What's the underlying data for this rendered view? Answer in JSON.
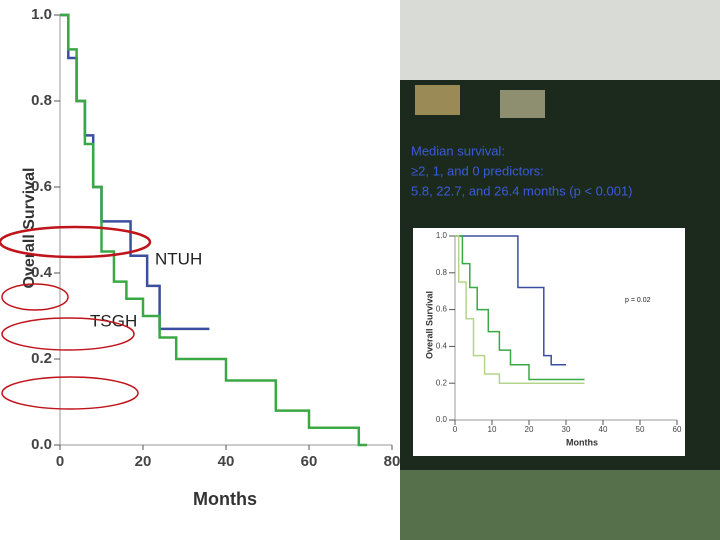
{
  "chart_data": [
    {
      "type": "line",
      "x_label": "Months",
      "y_label": "Overall Survival",
      "xlim": [
        0,
        80
      ],
      "ylim": [
        0,
        1
      ],
      "xticks": [
        0,
        20,
        40,
        60,
        80
      ],
      "yticks": [
        {
          "value": 0,
          "label": "0.0"
        },
        0.2,
        0.4,
        0.6,
        0.8,
        {
          "value": 1,
          "label": "1.0"
        }
      ],
      "annotations": [
        "NTUH",
        "TSGH"
      ],
      "series": [
        {
          "name": "NTUH",
          "color": "#3b4fa0",
          "x": [
            0,
            2,
            2,
            4,
            4,
            6,
            6,
            8,
            8,
            10,
            10,
            17,
            17,
            21,
            21,
            24,
            24,
            36
          ],
          "values": [
            1,
            1,
            0.9,
            0.9,
            0.8,
            0.8,
            0.72,
            0.72,
            0.6,
            0.6,
            0.52,
            0.52,
            0.44,
            0.44,
            0.37,
            0.37,
            0.27,
            0.27
          ]
        },
        {
          "name": "TSGH",
          "color": "#3aa845",
          "x": [
            0,
            2,
            2,
            4,
            4,
            6,
            6,
            8,
            8,
            10,
            10,
            13,
            13,
            16,
            16,
            20,
            20,
            24,
            24,
            28,
            28,
            40,
            40,
            52,
            52,
            60,
            60,
            72,
            72,
            74
          ],
          "values": [
            1,
            1,
            0.92,
            0.92,
            0.8,
            0.8,
            0.7,
            0.7,
            0.6,
            0.6,
            0.45,
            0.45,
            0.38,
            0.38,
            0.34,
            0.34,
            0.3,
            0.3,
            0.25,
            0.25,
            0.2,
            0.2,
            0.15,
            0.15,
            0.08,
            0.08,
            0.04,
            0.04,
            0,
            0
          ]
        }
      ]
    },
    {
      "type": "line",
      "x_label": "Months",
      "y_label": "Overall Survival",
      "xlim": [
        0,
        60
      ],
      "ylim": [
        0,
        1
      ],
      "xticks": [
        0,
        10,
        20,
        30,
        40,
        50,
        60
      ],
      "yticks": [
        {
          "value": 0,
          "label": "0.0"
        },
        0.2,
        0.4,
        0.6,
        0.8,
        {
          "value": 1,
          "label": "1.0"
        }
      ],
      "annotations": [
        "p = 0.02"
      ],
      "series": [
        {
          "color": "#3b4fa0",
          "x": [
            0,
            17,
            17,
            24,
            24,
            26,
            26,
            30
          ],
          "values": [
            1,
            1,
            0.72,
            0.72,
            0.35,
            0.35,
            0.3,
            0.3
          ]
        },
        {
          "color": "#3aa845",
          "x": [
            0,
            2,
            2,
            4,
            4,
            6,
            6,
            9,
            9,
            12,
            12,
            15,
            15,
            20,
            20,
            35
          ],
          "values": [
            1,
            1,
            0.85,
            0.85,
            0.72,
            0.72,
            0.6,
            0.6,
            0.48,
            0.48,
            0.38,
            0.38,
            0.3,
            0.3,
            0.22,
            0.22
          ]
        },
        {
          "color": "#b5d48a",
          "x": [
            0,
            1,
            1,
            3,
            3,
            5,
            5,
            8,
            8,
            12,
            12,
            35
          ],
          "values": [
            1,
            1,
            0.75,
            0.75,
            0.55,
            0.55,
            0.35,
            0.35,
            0.25,
            0.25,
            0.2,
            0.2
          ]
        }
      ]
    }
  ],
  "slide": {
    "text_lines": [
      "Median survival:",
      "≥2, 1, and 0 predictors:",
      "5.8, 22.7, and 26.4 months (p < 0.001)"
    ]
  }
}
